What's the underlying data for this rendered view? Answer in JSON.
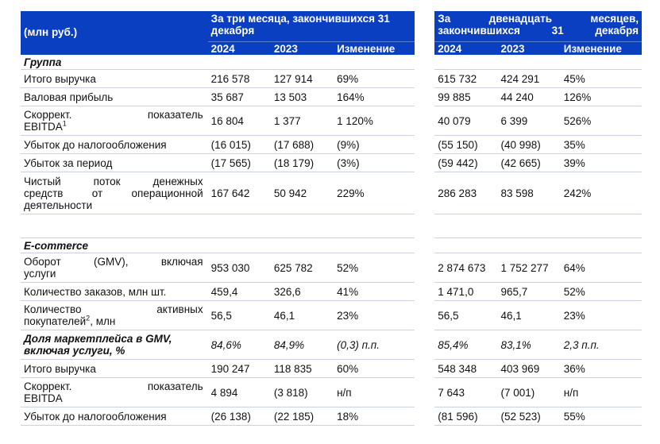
{
  "header": {
    "unit_label": "(млн руб.)",
    "period_q": "За три месяца, закончившихся 31 декабря",
    "period_y": "За двенадцать месяцев, закончившихся 31 декабря",
    "col_2024": "2024",
    "col_2023": "2023",
    "col_change": "Изменение"
  },
  "section_group": {
    "title": "Группа",
    "rows": [
      {
        "label": "Итого выручка",
        "q2024": "216 578",
        "q2023": "127 914",
        "qchg": "69%",
        "y2024": "615 732",
        "y2023": "424 291",
        "ychg": "45%"
      },
      {
        "label": "Валовая прибыль",
        "q2024": "35 687",
        "q2023": "13 503",
        "qchg": "164%",
        "y2024": "99 885",
        "y2023": "44 240",
        "ychg": "126%"
      },
      {
        "label_a": "Скоррект. показатель",
        "label_b": "EBITDA",
        "sup": "1",
        "q2024": "16 804",
        "q2023": "1 377",
        "qchg": "1 120%",
        "y2024": "40 079",
        "y2023": "6 399",
        "ychg": "526%"
      },
      {
        "label": "Убыток до налогообложения",
        "q2024": "(16 015)",
        "q2023": "(17 688)",
        "qchg": "(9%)",
        "y2024": "(55 150)",
        "y2023": "(40 998)",
        "ychg": "35%"
      },
      {
        "label": "Убыток за период",
        "q2024": "(17 565)",
        "q2023": "(18 179)",
        "qchg": "(3%)",
        "y2024": "(59 442)",
        "y2023": "(42 665)",
        "ychg": "39%"
      },
      {
        "label_a": "Чистый поток денежных",
        "label_b": "средств от операционной",
        "label_c": "деятельности",
        "q2024": "167 642",
        "q2023": "50 942",
        "qchg": "229%",
        "y2024": "286 283",
        "y2023": "83 598",
        "ychg": "242%"
      }
    ]
  },
  "section_ecom": {
    "title": "E-commerce",
    "rows": [
      {
        "label_a": "Оборот (GMV), включая",
        "label_b": "услуги",
        "q2024": "953 030",
        "q2023": "625 782",
        "qchg": "52%",
        "y2024": "2 874 673",
        "y2023": "1 752 277",
        "ychg": "64%"
      },
      {
        "label": "Количество заказов, млн шт.",
        "q2024": "459,4",
        "q2023": "326,6",
        "qchg": "41%",
        "y2024": "1 471,0",
        "y2023": "965,7",
        "ychg": "52%"
      },
      {
        "label_a": "Количество активных",
        "label_b": "покупателей",
        "sup": "2",
        "label_tail": ", млн",
        "q2024": "56,5",
        "q2023": "46,1",
        "qchg": "23%",
        "y2024": "56,5",
        "y2023": "46,1",
        "ychg": "23%"
      },
      {
        "label_a": "Доля маркетплейса в GMV,",
        "label_b": "включая услуги, %",
        "q2024": "84,6%",
        "q2023": "84,9%",
        "qchg": "(0,3) п.п.",
        "y2024": "85,4%",
        "y2023": "83,1%",
        "ychg": "2,3 п.п."
      },
      {
        "label": "Итого выручка",
        "q2024": "190 247",
        "q2023": "118 835",
        "qchg": "60%",
        "y2024": "548 348",
        "y2023": "403 969",
        "ychg": "36%"
      },
      {
        "label_a": "Скоррект. показатель",
        "label_b": "EBITDA",
        "q2024": "4 894",
        "q2023": "(3 818)",
        "qchg": "н/п",
        "y2024": "7 643",
        "y2023": "(7 001)",
        "ychg": "н/п"
      },
      {
        "label": "Убыток до налогообложения",
        "q2024": "(26 138)",
        "q2023": "(22 185)",
        "qchg": "18%",
        "y2024": "(81 596)",
        "y2023": "(52 523)",
        "ychg": "55%"
      }
    ]
  }
}
